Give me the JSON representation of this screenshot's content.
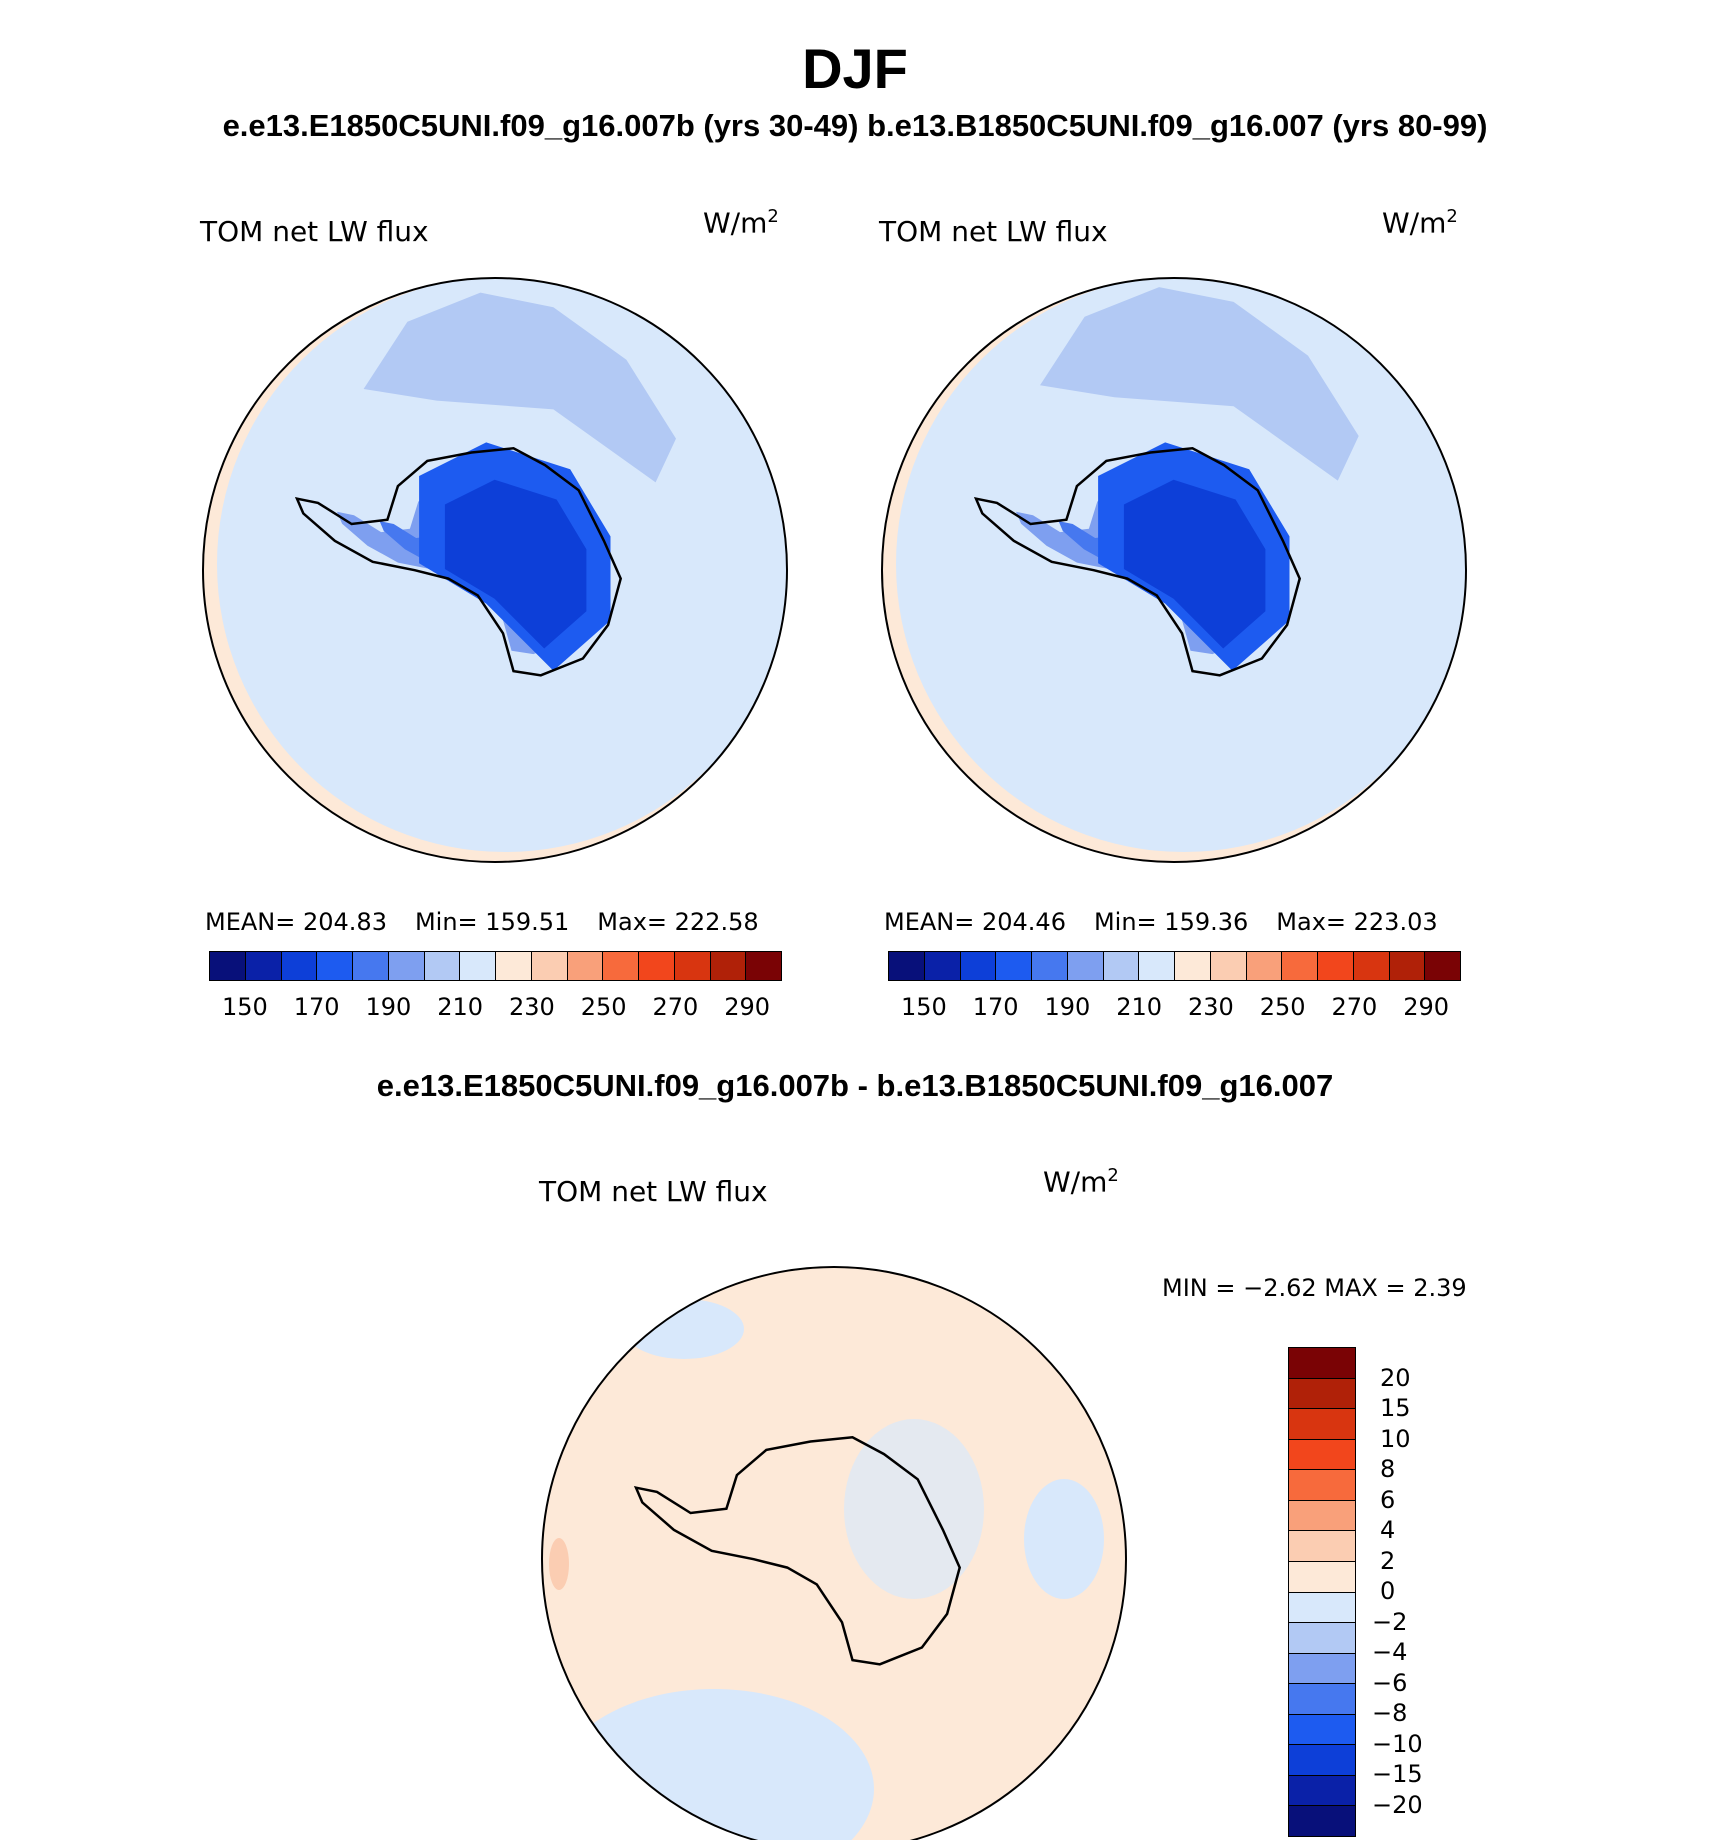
{
  "title": "DJF",
  "subtitle": "e.e13.E1850C5UNI.f09_g16.007b (yrs 30-49)  b.e13.B1850C5UNI.f09_g16.007 (yrs 80-99)",
  "diff_title": "e.e13.E1850C5UNI.f09_g16.007b - b.e13.B1850C5UNI.f09_g16.007",
  "panels": [
    {
      "variable": "TOM net LW flux",
      "units": "W/m",
      "units_sup": "2",
      "stats": {
        "mean": "MEAN= 204.83",
        "min": "Min= 159.51",
        "max": "Max= 222.58"
      }
    },
    {
      "variable": "TOM net LW flux",
      "units": "W/m",
      "units_sup": "2",
      "stats": {
        "mean": "MEAN= 204.46",
        "min": "Min= 159.36",
        "max": "Max= 223.03"
      }
    }
  ],
  "diff_panel": {
    "variable": "TOM net LW flux",
    "units": "W/m",
    "units_sup": "2",
    "stats": "MIN =    −2.62  MAX =     2.39"
  },
  "colorbar_main": {
    "colors": [
      "#08107a",
      "#0a21a8",
      "#0d3fd8",
      "#1d5bf0",
      "#4678ef",
      "#7e9ff0",
      "#b2c9f4",
      "#d8e8fb",
      "#fde9d8",
      "#fbcdb2",
      "#f9a07a",
      "#f76a3c",
      "#f2461c",
      "#d83510",
      "#b02108",
      "#7a0305"
    ],
    "tick_labels": [
      "150",
      "170",
      "190",
      "210",
      "230",
      "250",
      "270",
      "290"
    ]
  },
  "colorbar_diff": {
    "colors": [
      "#7a0305",
      "#b02108",
      "#d83510",
      "#f2461c",
      "#f76a3c",
      "#f9a07a",
      "#fbcdb2",
      "#fde9d8",
      "#d8e8fb",
      "#b2c9f4",
      "#7e9ff0",
      "#4678ef",
      "#1d5bf0",
      "#0d3fd8",
      "#0a21a8",
      "#08107a"
    ],
    "tick_labels": [
      "20",
      "15",
      "10",
      "8",
      "6",
      "4",
      "2",
      "0",
      "−2",
      "−4",
      "−6",
      "−8",
      "−10",
      "−15",
      "−20"
    ]
  },
  "map_colors": {
    "ocean_main": "#d8e8fb",
    "warm_edge": "#fde9d8",
    "level_1": "#b2c9f4",
    "level_2": "#7e9ff0",
    "level_3": "#4678ef",
    "level_4": "#1d5bf0",
    "level_5": "#0d3fd8",
    "diff_bg": "#fde9d8",
    "diff_neg": "#d8e8fb",
    "diff_pos": "#fbcdb2",
    "coastline": "#000000"
  }
}
